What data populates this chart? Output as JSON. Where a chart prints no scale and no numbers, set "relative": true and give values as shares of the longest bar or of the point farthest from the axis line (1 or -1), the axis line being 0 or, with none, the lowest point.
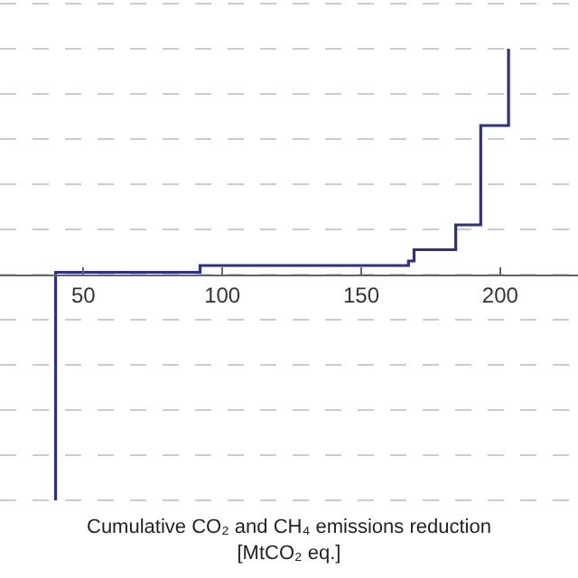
{
  "chart_data": {
    "type": "step",
    "relative": true,
    "xlabel": "Cumulative CO₂ and CH₄ emissions reduction\n[MtCO₂ eq.]",
    "x": [
      40,
      40,
      92,
      167,
      169,
      184,
      193,
      203
    ],
    "series": [
      {
        "color": "#2e2e8c",
        "values": [
          -1,
          0.01,
          0.04,
          0.06,
          0.11,
          0.22,
          0.66,
          1.0
        ]
      }
    ],
    "xlim": [
      20,
      228
    ],
    "xticks": [
      50,
      100,
      150,
      200
    ],
    "grid": "y",
    "marker": "none",
    "line_style": "solid"
  }
}
